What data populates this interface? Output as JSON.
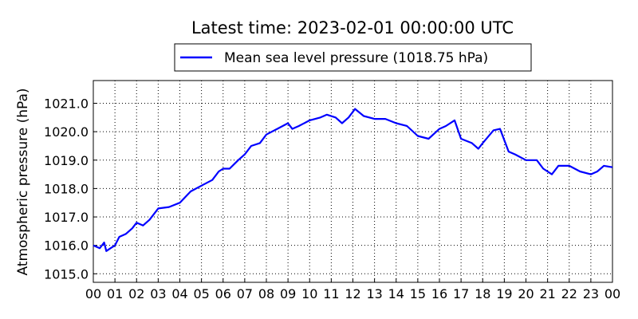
{
  "chart_data": {
    "type": "line",
    "title": "Latest time: 2023-02-01 00:00:00 UTC",
    "y_label": "Atmospheric pressure (hPa)",
    "x": [
      0,
      0.3,
      0.5,
      0.6,
      0.8,
      1.0,
      1.2,
      1.5,
      1.8,
      2.0,
      2.3,
      2.6,
      3.0,
      3.5,
      4.0,
      4.5,
      5.0,
      5.5,
      5.8,
      6.0,
      6.3,
      6.7,
      7.0,
      7.3,
      7.7,
      8.0,
      8.5,
      9.0,
      9.2,
      9.5,
      10.0,
      10.5,
      10.8,
      11.2,
      11.5,
      11.8,
      12.1,
      12.5,
      13.0,
      13.5,
      14.0,
      14.5,
      15.0,
      15.5,
      16.0,
      16.3,
      16.7,
      17.0,
      17.5,
      17.8,
      18.0,
      18.5,
      18.8,
      19.2,
      19.5,
      20.0,
      20.5,
      20.8,
      21.2,
      21.5,
      22.0,
      22.5,
      23.0,
      23.3,
      23.6,
      24.0
    ],
    "series": [
      {
        "name": "Mean sea level pressure (1018.75 hPa)",
        "color": "#0000ff",
        "values": [
          1016.0,
          1015.9,
          1016.1,
          1015.8,
          1015.9,
          1016.0,
          1016.3,
          1016.4,
          1016.6,
          1016.8,
          1016.7,
          1016.9,
          1017.3,
          1017.35,
          1017.5,
          1017.9,
          1018.1,
          1018.3,
          1018.6,
          1018.7,
          1018.7,
          1019.0,
          1019.2,
          1019.5,
          1019.6,
          1019.9,
          1020.1,
          1020.3,
          1020.1,
          1020.2,
          1020.4,
          1020.5,
          1020.6,
          1020.5,
          1020.3,
          1020.5,
          1020.8,
          1020.55,
          1020.45,
          1020.45,
          1020.3,
          1020.2,
          1019.85,
          1019.75,
          1020.1,
          1020.2,
          1020.4,
          1019.75,
          1019.6,
          1019.4,
          1019.6,
          1020.05,
          1020.1,
          1019.3,
          1019.2,
          1019.0,
          1019.0,
          1018.7,
          1018.5,
          1018.8,
          1018.8,
          1018.6,
          1018.5,
          1018.6,
          1018.8,
          1018.75
        ]
      }
    ],
    "xlim": [
      0,
      24
    ],
    "xticks": [
      {
        "value": 0,
        "label": "00"
      },
      {
        "value": 1,
        "label": "01"
      },
      {
        "value": 2,
        "label": "02"
      },
      {
        "value": 3,
        "label": "03"
      },
      {
        "value": 4,
        "label": "04"
      },
      {
        "value": 5,
        "label": "05"
      },
      {
        "value": 6,
        "label": "06"
      },
      {
        "value": 7,
        "label": "07"
      },
      {
        "value": 8,
        "label": "08"
      },
      {
        "value": 9,
        "label": "09"
      },
      {
        "value": 10,
        "label": "10"
      },
      {
        "value": 11,
        "label": "11"
      },
      {
        "value": 12,
        "label": "12"
      },
      {
        "value": 13,
        "label": "13"
      },
      {
        "value": 14,
        "label": "14"
      },
      {
        "value": 15,
        "label": "15"
      },
      {
        "value": 16,
        "label": "16"
      },
      {
        "value": 17,
        "label": "17"
      },
      {
        "value": 18,
        "label": "18"
      },
      {
        "value": 19,
        "label": "19"
      },
      {
        "value": 20,
        "label": "20"
      },
      {
        "value": 21,
        "label": "21"
      },
      {
        "value": 22,
        "label": "22"
      },
      {
        "value": 23,
        "label": "23"
      },
      {
        "value": 24,
        "label": "00"
      }
    ],
    "ylim": [
      1014.7,
      1021.8
    ],
    "yticks": [
      {
        "value": 1015,
        "label": "1015.0"
      },
      {
        "value": 1016,
        "label": "1016.0"
      },
      {
        "value": 1017,
        "label": "1017.0"
      },
      {
        "value": 1018,
        "label": "1018.0"
      },
      {
        "value": 1019,
        "label": "1019.0"
      },
      {
        "value": 1020,
        "label": "1020.0"
      },
      {
        "value": 1021,
        "label": "1021.0"
      }
    ],
    "grid": true,
    "legend": "top"
  }
}
